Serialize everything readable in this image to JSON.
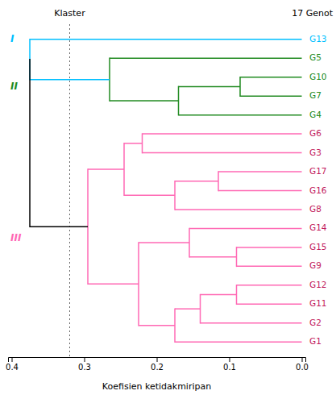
{
  "chart_data": {
    "type": "dendrogram",
    "title": "17 Genot",
    "xlabel": "Koefisien ketidakmiripan",
    "xlim": [
      0.405,
      -0.005
    ],
    "xticks": [
      0.4,
      0.3,
      0.2,
      0.1,
      {
        "value": 0,
        "label": "0.0"
      }
    ],
    "labels": [
      "G13",
      "G5",
      "G10",
      "G7",
      "G4",
      "G6",
      "G3",
      "G17",
      "G16",
      "G8",
      "G14",
      "G15",
      "G9",
      "G12",
      "G11",
      "G2",
      "G1"
    ],
    "label_colors": [
      "#00BFFF",
      "#228B22",
      "#228B22",
      "#228B22",
      "#228B22",
      "#C2185B",
      "#C2185B",
      "#C2185B",
      "#C2185B",
      "#C2185B",
      "#C2185B",
      "#C2185B",
      "#C2185B",
      "#C2185B",
      "#C2185B",
      "#C2185B",
      "#C2185B"
    ],
    "leaf_height": 0,
    "merges": [
      {
        "children": [
          [
            "G10"
          ],
          [
            "G7"
          ]
        ],
        "height": 0.085,
        "color": "#228B22"
      },
      {
        "children": [
          [
            "G10",
            "G7"
          ],
          [
            "G4"
          ]
        ],
        "height": 0.17,
        "color": "#228B22"
      },
      {
        "children": [
          [
            "G5"
          ],
          [
            "G10",
            "G7",
            "G4"
          ]
        ],
        "height": 0.265,
        "color": "#228B22"
      },
      {
        "children": [
          [
            "G6"
          ],
          [
            "G3"
          ]
        ],
        "height": 0.22,
        "color": "#FF69B4"
      },
      {
        "children": [
          [
            "G17"
          ],
          [
            "G16"
          ]
        ],
        "height": 0.115,
        "color": "#FF69B4"
      },
      {
        "children": [
          [
            "G17",
            "G16"
          ],
          [
            "G8"
          ]
        ],
        "height": 0.175,
        "color": "#FF69B4"
      },
      {
        "children": [
          [
            "G6",
            "G3"
          ],
          [
            "G17",
            "G16",
            "G8"
          ]
        ],
        "height": 0.245,
        "color": "#FF69B4"
      },
      {
        "children": [
          [
            "G15"
          ],
          [
            "G9"
          ]
        ],
        "height": 0.09,
        "color": "#FF69B4"
      },
      {
        "children": [
          [
            "G14"
          ],
          [
            "G15",
            "G9"
          ]
        ],
        "height": 0.155,
        "color": "#FF69B4"
      },
      {
        "children": [
          [
            "G12"
          ],
          [
            "G11"
          ]
        ],
        "height": 0.09,
        "color": "#FF69B4"
      },
      {
        "children": [
          [
            "G12",
            "G11"
          ],
          [
            "G2"
          ]
        ],
        "height": 0.14,
        "color": "#FF69B4"
      },
      {
        "children": [
          [
            "G12",
            "G11",
            "G2"
          ],
          [
            "G1"
          ]
        ],
        "height": 0.175,
        "color": "#FF69B4"
      },
      {
        "children": [
          [
            "G14",
            "G15",
            "G9"
          ],
          [
            "G12",
            "G11",
            "G2",
            "G1"
          ]
        ],
        "height": 0.225,
        "color": "#FF69B4"
      },
      {
        "children": [
          [
            "G6",
            "G3",
            "G17",
            "G16",
            "G8"
          ],
          [
            "G14",
            "G15",
            "G9",
            "G12",
            "G11",
            "G2",
            "G1"
          ]
        ],
        "height": 0.295,
        "color": "#FF69B4"
      },
      {
        "children": [
          [
            "G13"
          ],
          [
            "G5",
            "G10",
            "G7",
            "G4"
          ]
        ],
        "height": 0.375,
        "color": "#00BFFF"
      },
      {
        "children": [
          [
            "G13",
            "G5",
            "G10",
            "G7",
            "G4"
          ],
          [
            "G6",
            "G3",
            "G17",
            "G16",
            "G8",
            "G14",
            "G15",
            "G9",
            "G12",
            "G11",
            "G2",
            "G1"
          ]
        ],
        "height": 0.375,
        "color": "#000000"
      }
    ],
    "clusters": [
      {
        "label": "I",
        "color": "#00BFFF",
        "members": [
          "G13"
        ]
      },
      {
        "label": "II",
        "color": "#228B22",
        "members": [
          "G5",
          "G10",
          "G7",
          "G4"
        ]
      },
      {
        "label": "III",
        "color": "#FF69B4",
        "members": [
          "G6",
          "G3",
          "G17",
          "G16",
          "G8",
          "G14",
          "G15",
          "G9",
          "G12",
          "G11",
          "G2",
          "G1"
        ]
      }
    ],
    "reference_line": {
      "x": 0.32,
      "label": "Klaster",
      "color": "#666666",
      "line_style": "dotted"
    }
  }
}
